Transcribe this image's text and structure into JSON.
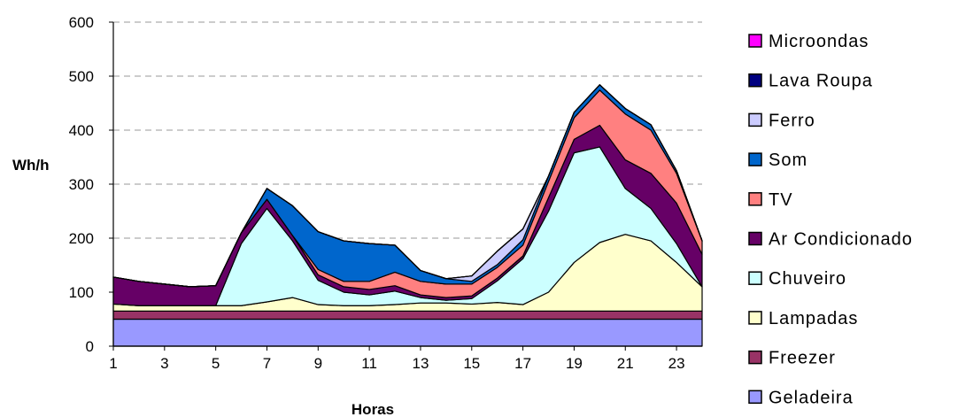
{
  "chart_data": {
    "type": "area",
    "stacked": true,
    "xlabel": "Horas",
    "ylabel": "Wh/h",
    "ylim": [
      0,
      600
    ],
    "yticks": [
      0,
      100,
      200,
      300,
      400,
      500,
      600
    ],
    "xticks": [
      1,
      3,
      5,
      7,
      9,
      11,
      13,
      15,
      17,
      19,
      21,
      23
    ],
    "grid": "horizontal-dashed",
    "legend_position": "right",
    "x": [
      1,
      2,
      3,
      4,
      5,
      6,
      7,
      8,
      9,
      10,
      11,
      12,
      13,
      14,
      15,
      16,
      17,
      18,
      19,
      20,
      21,
      22,
      23,
      24
    ],
    "series": [
      {
        "name": "Geladeira",
        "color": "#9999ff",
        "values": [
          50,
          50,
          50,
          50,
          50,
          50,
          50,
          50,
          50,
          50,
          50,
          50,
          50,
          50,
          50,
          50,
          50,
          50,
          50,
          50,
          50,
          50,
          50,
          50
        ]
      },
      {
        "name": "Freezer",
        "color": "#993366",
        "values": [
          15,
          15,
          15,
          15,
          15,
          15,
          15,
          15,
          15,
          15,
          15,
          15,
          15,
          15,
          15,
          15,
          15,
          15,
          15,
          15,
          15,
          15,
          15,
          15
        ]
      },
      {
        "name": "Lampadas",
        "color": "#ffffcc",
        "values": [
          13,
          10,
          10,
          10,
          10,
          10,
          17,
          25,
          12,
          10,
          10,
          12,
          15,
          15,
          13,
          16,
          12,
          35,
          90,
          127,
          142,
          130,
          90,
          45
        ]
      },
      {
        "name": "Chuveiro",
        "color": "#ccffff",
        "values": [
          0,
          0,
          0,
          0,
          0,
          115,
          173,
          105,
          45,
          25,
          20,
          25,
          10,
          5,
          10,
          40,
          85,
          150,
          203,
          177,
          85,
          60,
          35,
          0
        ]
      },
      {
        "name": "Ar Condicionado",
        "color": "#660066",
        "values": [
          50,
          45,
          40,
          35,
          37,
          20,
          17,
          10,
          10,
          10,
          10,
          10,
          5,
          5,
          5,
          5,
          5,
          25,
          25,
          40,
          53,
          65,
          75,
          60
        ]
      },
      {
        "name": "TV",
        "color": "#ff8080",
        "values": [
          0,
          0,
          0,
          0,
          0,
          0,
          0,
          0,
          10,
          10,
          15,
          25,
          25,
          25,
          22,
          20,
          20,
          30,
          40,
          65,
          85,
          80,
          55,
          25
        ]
      },
      {
        "name": "Som",
        "color": "#0066cc",
        "values": [
          0,
          0,
          0,
          0,
          0,
          0,
          20,
          55,
          70,
          75,
          70,
          50,
          20,
          10,
          5,
          5,
          10,
          10,
          10,
          10,
          10,
          10,
          5,
          0
        ]
      },
      {
        "name": "Ferro",
        "color": "#ccccff",
        "values": [
          0,
          0,
          0,
          0,
          0,
          0,
          0,
          0,
          0,
          0,
          0,
          0,
          0,
          0,
          10,
          25,
          20,
          0,
          0,
          0,
          0,
          0,
          0,
          0
        ]
      },
      {
        "name": "Lava Roupa",
        "color": "#000080",
        "values": [
          0,
          0,
          0,
          0,
          0,
          0,
          0,
          0,
          0,
          0,
          0,
          0,
          0,
          0,
          0,
          0,
          0,
          0,
          0,
          0,
          0,
          0,
          0,
          0
        ]
      },
      {
        "name": "Microondas",
        "color": "#ff00ff",
        "values": [
          0,
          0,
          0,
          0,
          0,
          0,
          0,
          0,
          0,
          0,
          0,
          0,
          0,
          0,
          0,
          0,
          0,
          0,
          0,
          0,
          0,
          0,
          0,
          0
        ]
      }
    ],
    "legend_order": [
      "Microondas",
      "Lava Roupa",
      "Ferro",
      "Som",
      "TV",
      "Ar Condicionado",
      "Chuveiro",
      "Lampadas",
      "Freezer",
      "Geladeira"
    ]
  }
}
